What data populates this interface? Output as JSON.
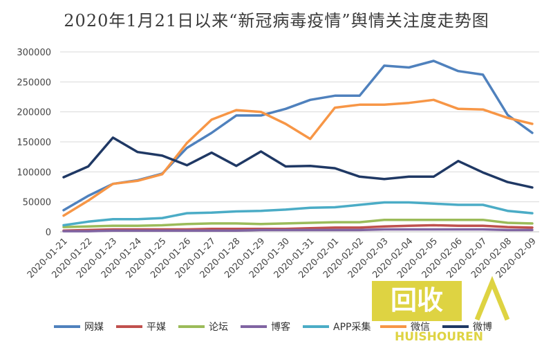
{
  "chart_data": {
    "type": "line",
    "title": "2020年1月21日以来“新冠病毒疫情”舆情关注度走势图",
    "xlabel": "",
    "ylabel": "",
    "ylim": [
      0,
      300000
    ],
    "yticks": [
      "0",
      "50000",
      "100000",
      "150000",
      "200000",
      "250000",
      "300000"
    ],
    "grid": true,
    "legend_position": "bottom",
    "categories": [
      "2020-01-21",
      "2020-01-22",
      "2020-01-23",
      "2020-01-24",
      "2020-01-25",
      "2020-01-26",
      "2020-01-27",
      "2020-01-28",
      "2020-01-29",
      "2020-01-30",
      "2020-01-31",
      "2020-02-01",
      "2020-02-02",
      "2020-02-03",
      "2020-02-04",
      "2020-02-05",
      "2020-02-06",
      "2020-02-07",
      "2020-02-08",
      "2020-02-09"
    ],
    "series": [
      {
        "name": "网媒",
        "color": "#4f81bd",
        "values": [
          36000,
          60000,
          80000,
          86000,
          97000,
          140000,
          165000,
          194000,
          194000,
          205000,
          220000,
          227000,
          227000,
          277000,
          274000,
          285000,
          268000,
          262000,
          195000,
          165000
        ]
      },
      {
        "name": "平媒",
        "color": "#c0504d",
        "values": [
          2000,
          3000,
          4000,
          4000,
          4000,
          4000,
          5000,
          5000,
          5000,
          5000,
          6000,
          7000,
          7000,
          9000,
          10000,
          11000,
          10000,
          10000,
          8000,
          7000
        ]
      },
      {
        "name": "论坛",
        "color": "#9bbb59",
        "values": [
          8000,
          9000,
          10000,
          10000,
          11000,
          13000,
          14000,
          14000,
          13000,
          14000,
          15000,
          16000,
          16000,
          20000,
          20000,
          20000,
          20000,
          20000,
          15000,
          14000
        ]
      },
      {
        "name": "博客",
        "color": "#8064a2",
        "values": [
          1000,
          1000,
          2000,
          2000,
          2000,
          2000,
          2000,
          2000,
          3000,
          3000,
          3000,
          3000,
          3000,
          4000,
          4000,
          4000,
          4000,
          4000,
          3000,
          3000
        ]
      },
      {
        "name": "APP采集",
        "color": "#4bacc6",
        "values": [
          11000,
          17000,
          21000,
          21000,
          23000,
          31000,
          32000,
          34000,
          35000,
          37000,
          40000,
          41000,
          45000,
          49000,
          49000,
          47000,
          45000,
          45000,
          35000,
          31000
        ]
      },
      {
        "name": "微信",
        "color": "#f79646",
        "values": [
          27000,
          52000,
          80000,
          85000,
          96000,
          148000,
          187000,
          203000,
          200000,
          180000,
          155000,
          207000,
          212000,
          212000,
          215000,
          220000,
          205000,
          204000,
          190000,
          180000
        ]
      },
      {
        "name": "微博",
        "color": "#1f3864",
        "values": [
          91000,
          109000,
          157000,
          133000,
          127000,
          111000,
          132000,
          110000,
          134000,
          109000,
          110000,
          106000,
          92000,
          88000,
          92000,
          92000,
          118000,
          99000,
          83000,
          74000
        ]
      }
    ]
  },
  "watermark": {
    "big": "回收",
    "small": "HUISHOUREN"
  }
}
